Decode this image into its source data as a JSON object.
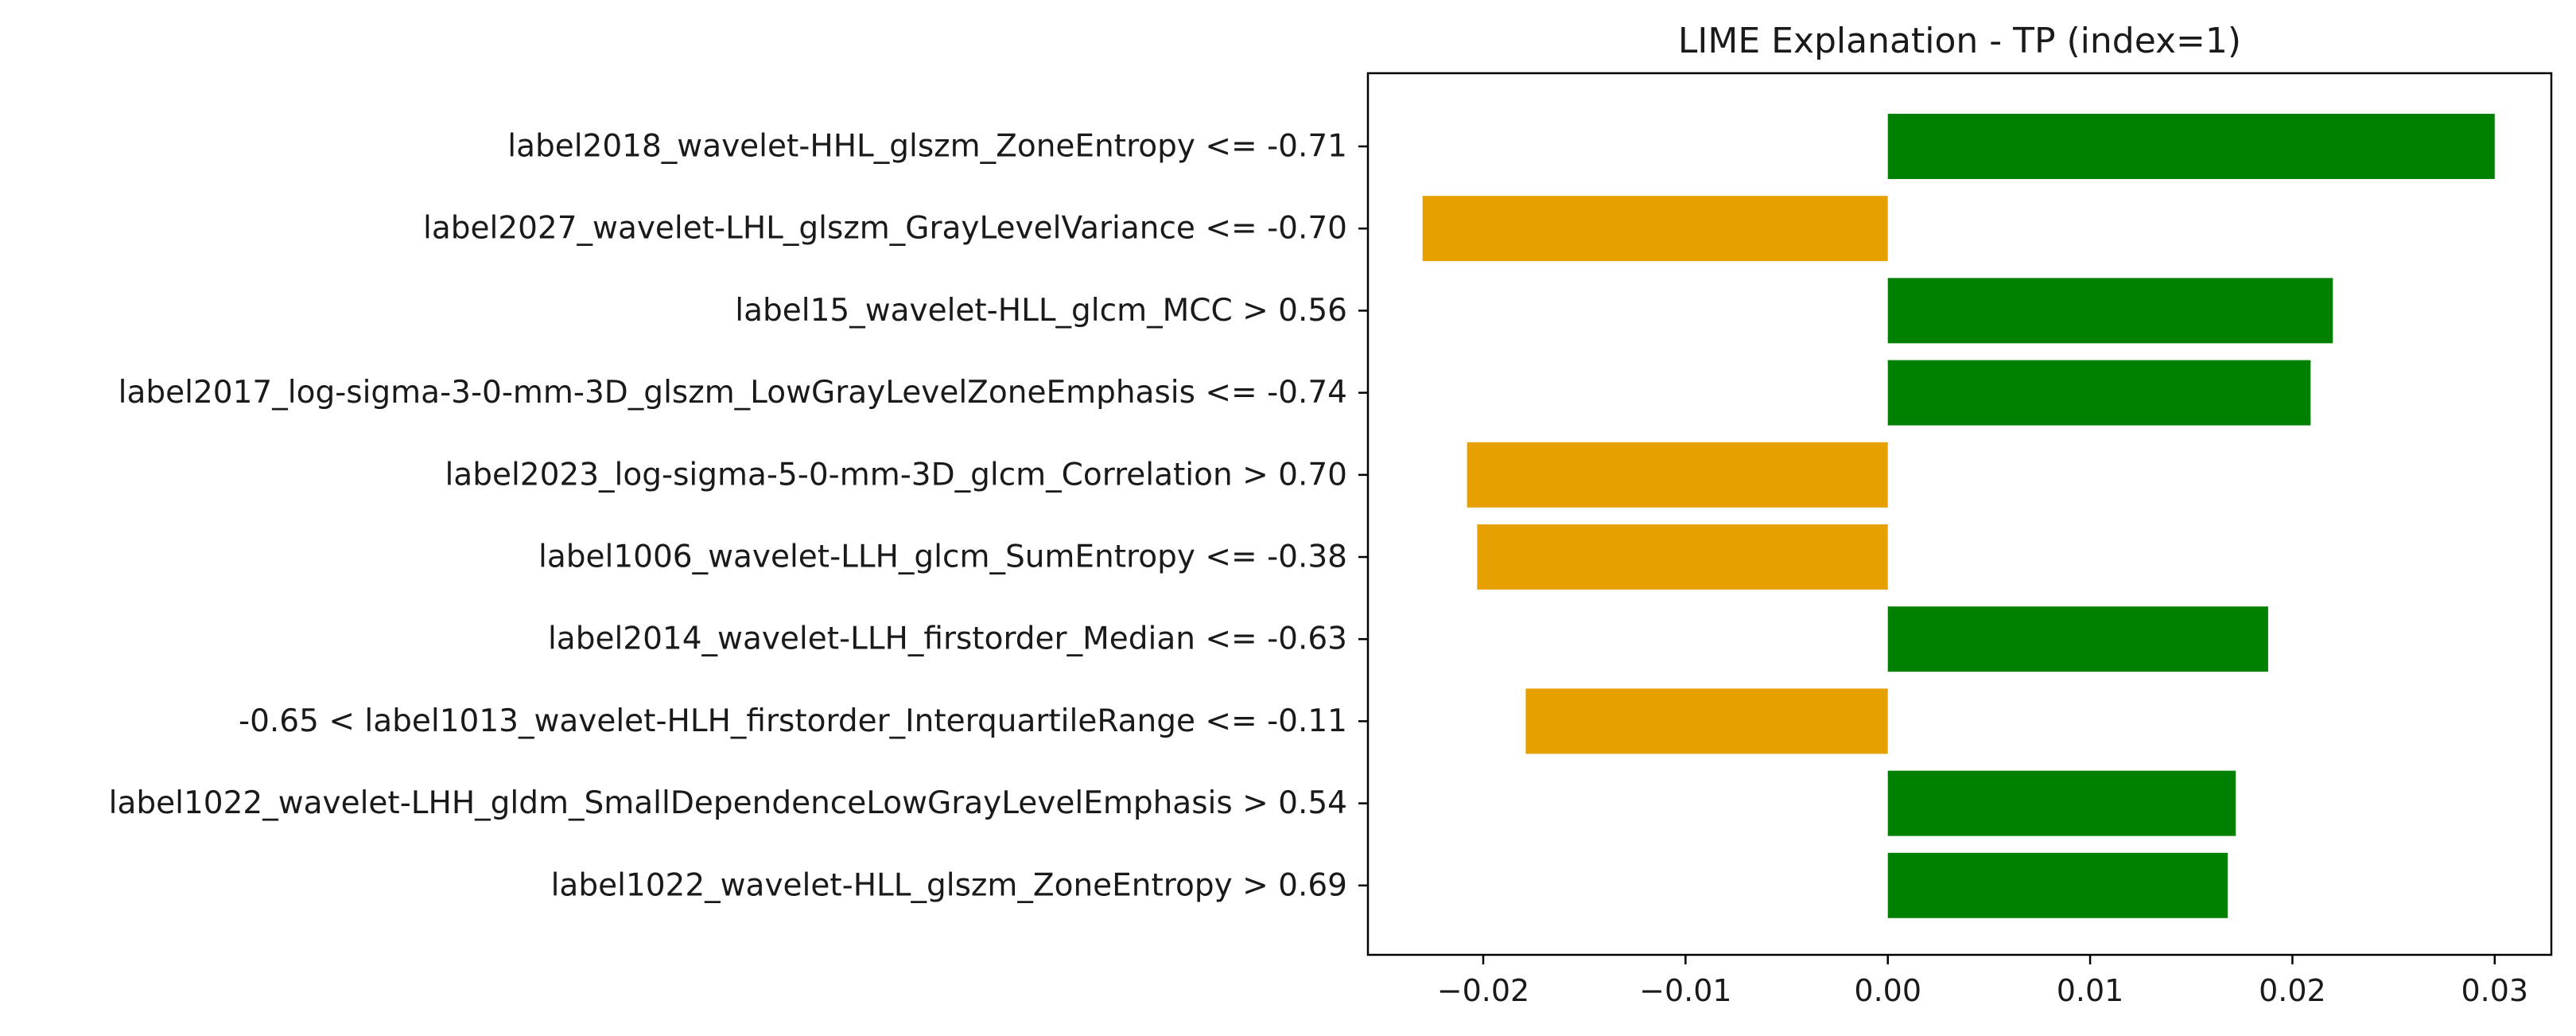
{
  "chart_data": {
    "type": "bar",
    "orientation": "horizontal",
    "title": "LIME Explanation - TP (index=1)",
    "xlabel": "",
    "ylabel": "",
    "xlim": [
      -0.0257,
      0.0328
    ],
    "grid": false,
    "legend": "none",
    "categories": [
      "label2018_wavelet-HHL_glszm_ZoneEntropy <= -0.71",
      "label2027_wavelet-LHL_glszm_GrayLevelVariance <= -0.70",
      "label15_wavelet-HLL_glcm_MCC > 0.56",
      "label2017_log-sigma-3-0-mm-3D_glszm_LowGrayLevelZoneEmphasis <= -0.74",
      "label2023_log-sigma-5-0-mm-3D_glcm_Correlation > 0.70",
      "label1006_wavelet-LLH_glcm_SumEntropy <= -0.38",
      "label2014_wavelet-LLH_firstorder_Median <= -0.63",
      "-0.65 < label1013_wavelet-HLH_firstorder_InterquartileRange <= -0.11",
      "label1022_wavelet-LHH_gldm_SmallDependenceLowGrayLevelEmphasis > 0.54",
      "label1022_wavelet-HLL_glszm_ZoneEntropy > 0.69"
    ],
    "values": [
      0.03,
      -0.023,
      0.022,
      0.0209,
      -0.0208,
      -0.0203,
      0.0188,
      -0.0179,
      0.0172,
      0.0168
    ],
    "xticks": [
      -0.02,
      -0.01,
      0.0,
      0.01,
      0.02,
      0.03
    ],
    "xtick_labels": [
      "−0.02",
      "−0.01",
      "0.00",
      "0.01",
      "0.02",
      "0.03"
    ],
    "colors": {
      "positive": "#008000",
      "negative": "#e6a000"
    }
  }
}
